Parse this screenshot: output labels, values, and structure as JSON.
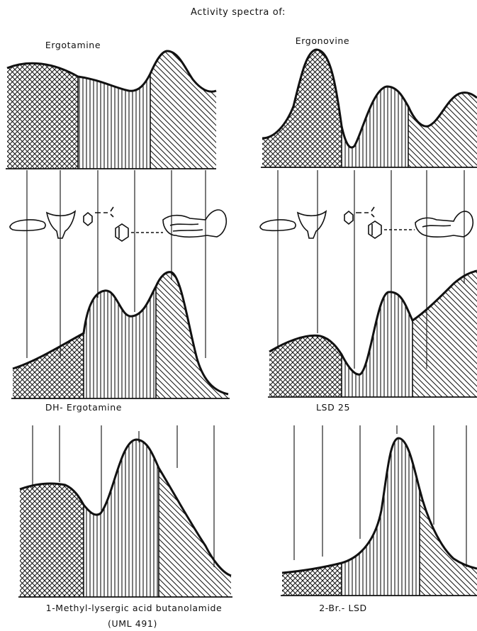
{
  "title": "Activity spectra of:",
  "labels": {
    "ergotamine": "Ergotamine",
    "ergonovine": "Ergonovine",
    "dh_ergotamine": "DH- Ergotamine",
    "lsd25": "LSD 25",
    "methyl_lysergic": "1-Methyl-lysergic acid butanolamide",
    "uml491": "(UML 491)",
    "br_lsd": "2-Br.- LSD"
  }
}
